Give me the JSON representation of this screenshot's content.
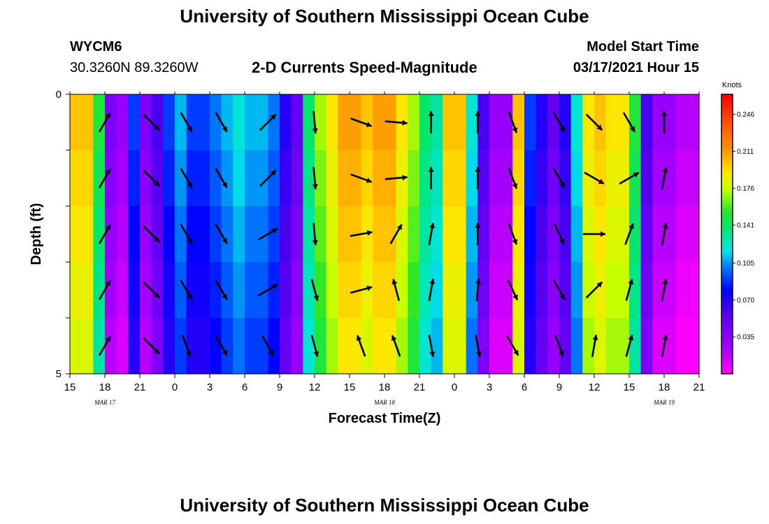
{
  "header": {
    "title": "University of Southern Mississippi Ocean Cube",
    "station_id": "WYCM6",
    "station_coords": "30.3260N 89.3260W",
    "chart_title": "2-D Currents Speed-Magnitude",
    "model_start_label": "Model Start Time",
    "model_start_value": "03/17/2021 Hour 15"
  },
  "footer": {
    "title": "University of Southern Mississippi Ocean Cube"
  },
  "chart_data": {
    "type": "heatmap",
    "title": "2-D Currents Speed-Magnitude",
    "xlabel": "Forecast Time(Z)",
    "ylabel": "Depth (ft)",
    "colorbar_label": "Knots",
    "colorbar_ticks": [
      "0.246",
      "0.211",
      "0.176",
      "0.141",
      "0.105",
      "0.070",
      "0.035"
    ],
    "colorbar_range": [
      0.0,
      0.265
    ],
    "x_tick_labels": [
      "15",
      "18",
      "21",
      "0",
      "3",
      "6",
      "9",
      "12",
      "15",
      "18",
      "21",
      "0",
      "3",
      "6",
      "9",
      "12",
      "15",
      "18",
      "21"
    ],
    "x_date_labels": [
      {
        "label": "MAR 17",
        "at_hour": 18
      },
      {
        "label": "MAR 18",
        "at_hour": 42
      },
      {
        "label": "MAR 19",
        "at_hour": 66
      }
    ],
    "x_range_hours": [
      0,
      54
    ],
    "y_tick_labels": [
      "0",
      "5"
    ],
    "y_range_ft": [
      0,
      5
    ],
    "depth_layers": 5,
    "hours_per_column": 1,
    "speed_by_hour_surface": [
      0.2,
      0.2,
      0.15,
      0.04,
      0.03,
      0.09,
      0.04,
      0.06,
      0.09,
      0.11,
      0.09,
      0.09,
      0.1,
      0.11,
      0.12,
      0.11,
      0.11,
      0.1,
      0.07,
      0.05,
      0.14,
      0.17,
      0.19,
      0.21,
      0.21,
      0.2,
      0.21,
      0.21,
      0.19,
      0.17,
      0.14,
      0.13,
      0.2,
      0.2,
      0.12,
      0.06,
      0.03,
      0.03,
      0.2,
      0.09,
      0.07,
      0.05,
      0.07,
      0.12,
      0.19,
      0.2,
      0.19,
      0.19,
      0.15,
      0.06,
      0.03,
      0.03,
      0.02,
      0.02,
      0.02
    ],
    "layer_adjust": [
      0.0,
      -0.005,
      -0.01,
      -0.015,
      -0.02
    ],
    "arrow_hours": [
      3,
      7,
      10,
      13,
      17,
      21,
      25,
      28,
      31,
      35,
      38,
      42,
      45,
      48,
      51
    ],
    "arrow_directions_deg": [
      [
        30,
        30,
        30,
        30,
        30
      ],
      [
        135,
        135,
        135,
        135,
        135
      ],
      [
        150,
        150,
        150,
        150,
        160
      ],
      [
        150,
        150,
        150,
        150,
        150
      ],
      [
        45,
        45,
        60,
        60,
        150
      ],
      [
        175,
        175,
        175,
        165,
        165
      ],
      [
        110,
        110,
        80,
        75,
        340
      ],
      [
        95,
        85,
        30,
        345,
        340
      ],
      [
        0,
        0,
        10,
        10,
        170
      ],
      [
        0,
        0,
        0,
        5,
        170
      ],
      [
        160,
        160,
        160,
        155,
        150
      ],
      [
        150,
        150,
        155,
        150,
        160
      ],
      [
        135,
        120,
        90,
        45,
        10
      ],
      [
        150,
        60,
        20,
        15,
        15
      ],
      [
        0,
        10,
        10,
        10,
        10
      ]
    ]
  }
}
